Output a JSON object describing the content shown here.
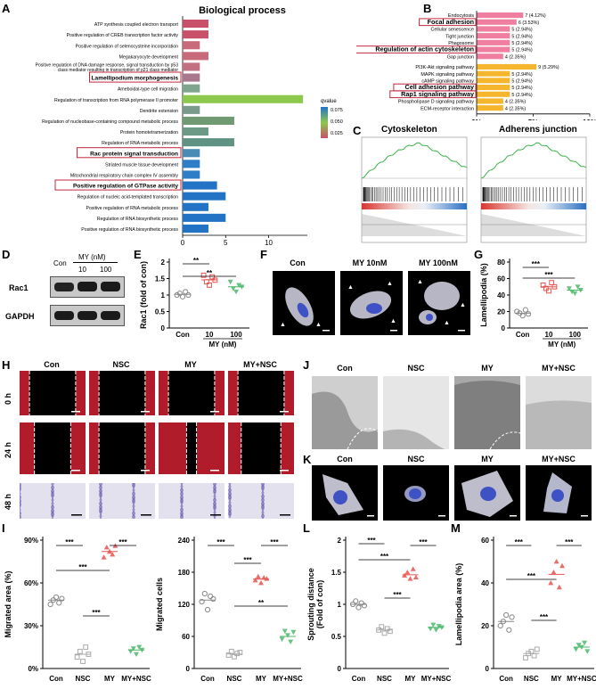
{
  "panel_labels": [
    "A",
    "B",
    "C",
    "D",
    "E",
    "F",
    "G",
    "H",
    "I",
    "J",
    "K",
    "L",
    "M"
  ],
  "panelA": {
    "title": "Biological process",
    "legend_title": "qvalue",
    "legend_ticks": [
      "0.075",
      "0.050",
      "0.025"
    ],
    "colors": {
      "low": "#c44e6a",
      "mid": "#7fbf4a",
      "high": "#1f6fc5"
    }
  },
  "panelB": {
    "pct_ticks": [
      "0%",
      "5%",
      "10%"
    ],
    "colors": {
      "group1": "#ef7ea0",
      "group2": "#f5b52c"
    }
  },
  "panelC": {
    "titles": [
      "Cytoskeleton",
      "Adherens junction"
    ]
  },
  "panelD": {
    "header": "MY (nM)",
    "con": "Con",
    "doses": [
      "10",
      "100"
    ],
    "rows": [
      "Rac1",
      "GAPDH"
    ]
  },
  "panelF": {
    "labels": [
      "Con",
      "MY 10nM",
      "MY 100nM"
    ]
  },
  "panelH": {
    "cols": [
      "Con",
      "NSC",
      "MY",
      "MY+NSC"
    ],
    "rows": [
      "0 h",
      "24 h",
      "48 h"
    ]
  },
  "panelJ": {
    "cols": [
      "Con",
      "NSC",
      "MY",
      "MY+NSC"
    ]
  },
  "panelK": {
    "cols": [
      "Con",
      "NSC",
      "MY",
      "MY+NSC"
    ]
  },
  "chart_data": [
    {
      "type": "bar",
      "panel": "A",
      "title": "Biological process",
      "orientation": "horizontal",
      "categories": [
        "ATP synthesis coupled electron transport",
        "Positive regulation of CREB transcription factor activity",
        "Positive regulation of selenocysteine incorporation",
        "Megakaryocyte development",
        "Positive regulation of DNA damage response, signal transduction by p53 class mediator resulting in transcription of p21 class mediator",
        "Lamellipodium morphogenesis",
        "Ameboidal-type cell migration",
        "Regulation of transcription from RNA polymerase II promoter",
        "Dendrite extension",
        "Regulation of nucleobase-containing compound metabolic process",
        "Protein homotetramerization",
        "Regulation of RNA metabolic process",
        "Rac protein signal transduction",
        "Striated muscle tissue development",
        "Mitochondrial respiratory chain complex IV assembly",
        "Positive regulation of GTPase activity",
        "Regulation of nucleic acid-templated transcription",
        "Positive regulation of RNA metabolic process",
        "Regulation of RNA biosynthetic process",
        "Positive regulation of RNA biosynthetic process"
      ],
      "values": [
        3,
        3,
        2,
        3,
        2,
        2,
        2,
        14,
        2,
        6,
        3,
        6,
        2,
        2,
        2,
        4,
        5,
        3,
        5,
        3
      ],
      "bar_colors": [
        "#c85068",
        "#c85068",
        "#c86a7a",
        "#c86a7a",
        "#c26f81",
        "#a9788e",
        "#7fa58e",
        "#8dc84e",
        "#7a9b8c",
        "#6f9a72",
        "#6d9a86",
        "#5f9282",
        "#4a8bb6",
        "#2e7ec7",
        "#2e7ec7",
        "#2273c6",
        "#2273c6",
        "#2273c6",
        "#2273c6",
        "#2273c6"
      ],
      "highlighted": [
        "Lamellipodium morphogenesis",
        "Rac protein signal transduction",
        "Positive regulation of GTPase activity"
      ],
      "xticks": [
        0,
        5,
        10
      ],
      "xlim": [
        0,
        14.5
      ],
      "legend": {
        "title": "qvalue",
        "ticks": [
          0.075,
          0.05,
          0.025
        ]
      }
    },
    {
      "type": "bar",
      "panel": "B",
      "orientation": "horizontal",
      "categories": [
        "Endocytosis",
        "Focal adhesion",
        "Cellular senescence",
        "Tight junction",
        "Phagosome",
        "Regulation of actin cytoskeleton",
        "Gap junction",
        "PI3K-Akt signaling pathway",
        "MAPK signaling pathway",
        "cAMP signaling pathway",
        "Cell adhesion pathway",
        "Rap1 signaling pathway",
        "Phospholipase D signaling pathway",
        "ECM-receptor interaction"
      ],
      "values": [
        4.12,
        3.53,
        2.94,
        2.94,
        2.94,
        2.94,
        2.35,
        5.29,
        2.94,
        2.94,
        2.94,
        2.94,
        2.35,
        2.35
      ],
      "value_labels": [
        "7 (4.12%)",
        "6 (3.53%)",
        "5 (2.94%)",
        "5 (2.94%)",
        "5 (2.94%)",
        "5 (2.94%)",
        "4 (2.35%)",
        "9 (5.29%)",
        "5 (2.94%)",
        "5 (2.94%)",
        "5 (2.94%)",
        "5 (2.94%)",
        "4 (2.35%)",
        "4 (2.35%)"
      ],
      "groups": [
        0,
        0,
        0,
        0,
        0,
        0,
        0,
        1,
        1,
        1,
        1,
        1,
        1,
        1
      ],
      "highlighted": [
        "Focal adhesion",
        "Regulation of actin cytoskeleton",
        "Cell adhesion pathway",
        "Rap1 signaling pathway"
      ],
      "xticks": [
        "0%",
        "5%",
        "10%"
      ],
      "xlim": [
        0,
        10
      ]
    },
    {
      "type": "scatter",
      "panel": "E",
      "ylabel": "Rac1 (fold of con)",
      "xlabel": "MY (nM)",
      "categories": [
        "Con",
        "10",
        "100"
      ],
      "points": [
        [
          1.0,
          1.05,
          0.95,
          1.1,
          1.0
        ],
        [
          1.6,
          1.4,
          1.3,
          1.55,
          1.45
        ],
        [
          1.4,
          1.2,
          1.1,
          1.3,
          1.25
        ]
      ],
      "means": [
        1.02,
        1.46,
        1.25
      ],
      "colors": [
        "#888888",
        "#e8534f",
        "#4cb86a"
      ],
      "yticks": [
        0.0,
        0.5,
        1.0,
        1.5,
        2.0
      ],
      "ylim": [
        0,
        2.0
      ],
      "significance": [
        {
          "from": 0,
          "to": 1,
          "label": "**"
        },
        {
          "from": 0,
          "to": 2,
          "label": "**"
        }
      ]
    },
    {
      "type": "scatter",
      "panel": "G",
      "ylabel": "Lamellipodia (%)",
      "xlabel": "MY (nM)",
      "categories": [
        "Con",
        "10",
        "100"
      ],
      "points": [
        [
          20,
          18,
          15,
          22,
          17
        ],
        [
          52,
          48,
          45,
          55,
          50
        ],
        [
          48,
          44,
          42,
          50,
          46
        ]
      ],
      "means": [
        18,
        50,
        46
      ],
      "colors": [
        "#888888",
        "#e8534f",
        "#4cb86a"
      ],
      "yticks": [
        0,
        20,
        40,
        60,
        80
      ],
      "ylim": [
        0,
        80
      ],
      "significance": [
        {
          "from": 0,
          "to": 1,
          "label": "***"
        },
        {
          "from": 0,
          "to": 2,
          "label": "***"
        }
      ]
    },
    {
      "type": "scatter",
      "panel": "I-left",
      "ylabel": "Migrated area (%)",
      "categories": [
        "Con",
        "NSC",
        "MY",
        "MY+NSC"
      ],
      "points": [
        [
          45,
          48,
          50,
          46,
          49
        ],
        [
          8,
          12,
          5,
          15,
          10
        ],
        [
          78,
          85,
          82,
          80,
          86
        ],
        [
          12,
          14,
          10,
          15,
          13
        ]
      ],
      "means": [
        48,
        10,
        82,
        13
      ],
      "colors": [
        "#888888",
        "#aaaaaa",
        "#e8534f",
        "#4cb86a"
      ],
      "yticks": [
        "0%",
        "30%",
        "60%",
        "90%"
      ],
      "ylim": [
        0,
        90
      ],
      "significance": [
        {
          "from": 0,
          "to": 1,
          "label": "***"
        },
        {
          "from": 0,
          "to": 2,
          "label": "***"
        },
        {
          "from": 2,
          "to": 3,
          "label": "***"
        },
        {
          "from": 1,
          "to": 2,
          "label": "***"
        }
      ]
    },
    {
      "type": "scatter",
      "panel": "I-right",
      "ylabel": "Migrated  cells",
      "categories": [
        "Con",
        "NSC",
        "MY",
        "MY+NSC"
      ],
      "points": [
        [
          125,
          140,
          110,
          135,
          130
        ],
        [
          25,
          32,
          22,
          28,
          30
        ],
        [
          165,
          172,
          160,
          170,
          168
        ],
        [
          55,
          70,
          62,
          50,
          68
        ]
      ],
      "means": [
        128,
        27,
        167,
        60
      ],
      "colors": [
        "#888888",
        "#aaaaaa",
        "#e8534f",
        "#4cb86a"
      ],
      "yticks": [
        0,
        60,
        120,
        180,
        240
      ],
      "ylim": [
        0,
        240
      ],
      "significance": [
        {
          "from": 0,
          "to": 1,
          "label": "***"
        },
        {
          "from": 1,
          "to": 2,
          "label": "***"
        },
        {
          "from": 2,
          "to": 3,
          "label": "***"
        },
        {
          "from": 1,
          "to": 3,
          "label": "**"
        }
      ]
    },
    {
      "type": "scatter",
      "panel": "L",
      "ylabel": "Sprouting distance (Fold of con)",
      "categories": [
        "Con",
        "NSC",
        "MY",
        "MY+NSC"
      ],
      "points": [
        [
          1.0,
          1.05,
          0.95,
          1.02,
          0.98
        ],
        [
          0.6,
          0.65,
          0.55,
          0.62,
          0.58
        ],
        [
          1.45,
          1.5,
          1.4,
          1.55,
          1.42
        ],
        [
          0.62,
          0.68,
          0.6,
          0.66,
          0.64
        ]
      ],
      "means": [
        1.0,
        0.6,
        1.46,
        0.64
      ],
      "colors": [
        "#888888",
        "#aaaaaa",
        "#e8534f",
        "#4cb86a"
      ],
      "yticks": [
        0.0,
        0.5,
        1.0,
        1.5,
        2.0
      ],
      "ylim": [
        0,
        2.0
      ],
      "significance": [
        {
          "from": 0,
          "to": 1,
          "label": "***"
        },
        {
          "from": 0,
          "to": 2,
          "label": "***"
        },
        {
          "from": 2,
          "to": 3,
          "label": "***"
        },
        {
          "from": 1,
          "to": 2,
          "label": "***"
        }
      ]
    },
    {
      "type": "scatter",
      "panel": "M",
      "ylabel": "Lamellipodia area (%)",
      "categories": [
        "Con",
        "NSC",
        "MY",
        "MY+NSC"
      ],
      "points": [
        [
          20,
          22,
          25,
          18,
          24
        ],
        [
          5,
          7,
          8,
          6,
          9
        ],
        [
          40,
          45,
          50,
          38,
          48
        ],
        [
          9,
          11,
          10,
          12,
          8
        ]
      ],
      "means": [
        22,
        7,
        44,
        10
      ],
      "colors": [
        "#888888",
        "#aaaaaa",
        "#e8534f",
        "#4cb86a"
      ],
      "yticks": [
        0,
        20,
        40,
        60
      ],
      "ylim": [
        0,
        60
      ],
      "significance": [
        {
          "from": 0,
          "to": 1,
          "label": "***"
        },
        {
          "from": 0,
          "to": 2,
          "label": "***"
        },
        {
          "from": 2,
          "to": 3,
          "label": "***"
        },
        {
          "from": 1,
          "to": 2,
          "label": "***"
        }
      ]
    }
  ]
}
